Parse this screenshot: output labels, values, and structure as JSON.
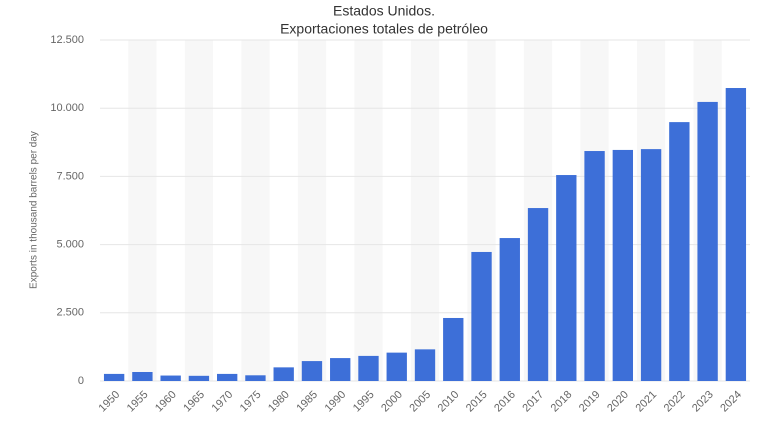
{
  "chart_data": {
    "type": "bar",
    "title": "Estados Unidos.",
    "subtitle": "Exportaciones totales de petróleo",
    "y_label": "Exports in thousand barrels per day",
    "categories": [
      "1950",
      "1955",
      "1960",
      "1965",
      "1970",
      "1975",
      "1980",
      "1985",
      "1990",
      "1995",
      "2000",
      "2005",
      "2010",
      "2015",
      "2016",
      "2017",
      "2018",
      "2019",
      "2020",
      "2021",
      "2022",
      "2023",
      "2024"
    ],
    "values": [
      260,
      330,
      200,
      190,
      260,
      209,
      500,
      730,
      840,
      920,
      1040,
      1160,
      2310,
      4730,
      5240,
      6340,
      7550,
      8430,
      8470,
      8500,
      9490,
      10230,
      10740
    ],
    "color": "#3d6fd8",
    "ylim": [
      0,
      12500
    ],
    "yticks": [
      0,
      {
        "value": 2500,
        "label": "2.500"
      },
      {
        "value": 5000,
        "label": "5.000"
      },
      {
        "value": 7500,
        "label": "7.500"
      },
      {
        "value": 10000,
        "label": "10.000"
      },
      {
        "value": 12500,
        "label": "12.500"
      }
    ],
    "grid": true
  }
}
